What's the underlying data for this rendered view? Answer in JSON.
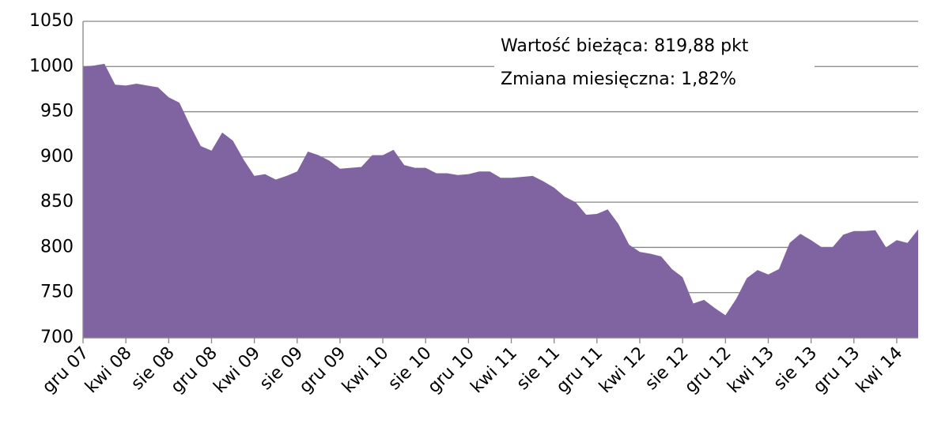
{
  "chart_data": {
    "type": "area",
    "categories": [
      "gru 07",
      null,
      null,
      null,
      "kwi 08",
      null,
      null,
      null,
      "sie 08",
      null,
      null,
      null,
      "gru 08",
      null,
      null,
      null,
      "kwi 09",
      null,
      null,
      null,
      "sie 09",
      null,
      null,
      null,
      "gru 09",
      null,
      null,
      null,
      "kwi 10",
      null,
      null,
      null,
      "sie 10",
      null,
      null,
      null,
      "gru 10",
      null,
      null,
      null,
      "kwi 11",
      null,
      null,
      null,
      "sie 11",
      null,
      null,
      null,
      "gru 11",
      null,
      null,
      null,
      "kwi 12",
      null,
      null,
      null,
      "sie 12",
      null,
      null,
      null,
      "gru 12",
      null,
      null,
      null,
      "kwi 13",
      null,
      null,
      null,
      "sie 13",
      null,
      null,
      null,
      "gru 13",
      null,
      null,
      null,
      "kwi 14",
      null,
      null
    ],
    "values": [
      1000,
      1001,
      1003,
      980,
      979,
      981,
      979,
      977,
      966,
      960,
      935,
      912,
      907,
      927,
      918,
      897,
      879,
      881,
      875,
      879,
      884,
      906,
      902,
      896,
      887,
      888,
      889,
      902,
      902,
      908,
      891,
      888,
      888,
      882,
      882,
      880,
      881,
      884,
      884,
      877,
      877,
      878,
      879,
      873,
      866,
      856,
      850,
      836,
      837,
      842,
      826,
      803,
      795,
      793,
      790,
      776,
      767,
      738,
      742,
      733,
      725,
      743,
      766,
      775,
      770,
      776,
      805,
      815,
      808,
      800,
      800,
      814,
      818,
      818,
      819,
      800,
      808,
      805,
      819.88
    ],
    "color": "#8064a2",
    "ylim": [
      700,
      1050
    ],
    "yticks": [
      700,
      750,
      800,
      850,
      900,
      950,
      1000,
      1050
    ],
    "grid": true,
    "annotations": [
      "Wartość bieżąca: 819,88 pkt",
      "Zmiana miesięczna: 1,82%"
    ]
  }
}
